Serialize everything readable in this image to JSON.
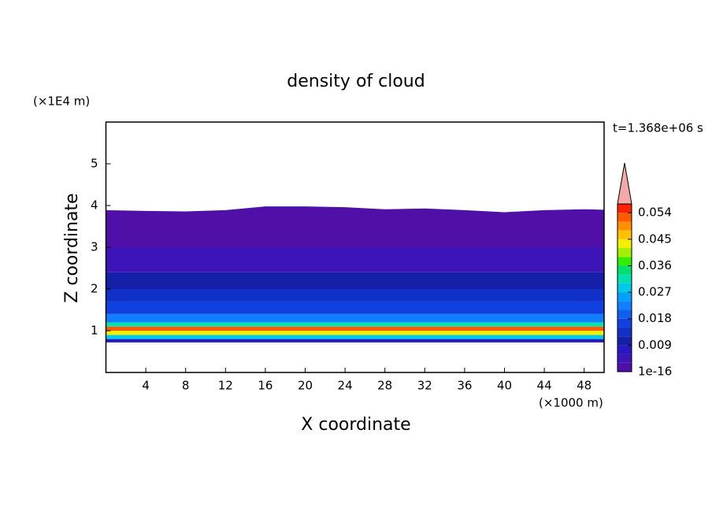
{
  "chart_data": {
    "type": "contour",
    "title": "density of cloud",
    "xlabel": "X coordinate",
    "ylabel": "Z coordinate",
    "x_unit": "(×1000 m)",
    "y_unit": "(×1E4 m)",
    "annotation": "t=1.368e+06 s",
    "xlim": [
      0,
      50
    ],
    "xticks": [
      4,
      8,
      12,
      16,
      20,
      24,
      28,
      32,
      36,
      40,
      44,
      48
    ],
    "ylim": [
      0,
      6
    ],
    "yticks": [
      1,
      2,
      3,
      4,
      5
    ],
    "layers": {
      "z": [
        0.72,
        0.8,
        0.9,
        1.0,
        1.1,
        1.2,
        1.4,
        1.7,
        2.0,
        2.4,
        3.0
      ],
      "values": [
        0.007,
        0.03,
        0.045,
        0.053,
        0.033,
        0.024,
        0.018,
        0.015,
        0.012,
        0.006
      ]
    },
    "cloud_top": {
      "x": [
        0,
        4,
        8,
        12,
        16,
        20,
        24,
        28,
        32,
        36,
        40,
        44,
        48,
        50
      ],
      "z": [
        3.88,
        3.86,
        3.85,
        3.88,
        3.97,
        3.97,
        3.95,
        3.9,
        3.92,
        3.88,
        3.83,
        3.88,
        3.9,
        3.89
      ],
      "value": 0.002
    },
    "colorbar": {
      "lim": [
        1e-16,
        0.057
      ],
      "ticks": [
        1e-16,
        0.009,
        0.018,
        0.027,
        0.036,
        0.045,
        0.054
      ],
      "colors": [
        "#5010a8",
        "#3c14b8",
        "#2818c0",
        "#1420a8",
        "#1030c8",
        "#1040e0",
        "#1060f0",
        "#1080ff",
        "#00a0ff",
        "#00c8e8",
        "#00e0b0",
        "#00e070",
        "#30f000",
        "#a0f000",
        "#f0f000",
        "#ffc000",
        "#ff9000",
        "#ff5a00",
        "#ff2000"
      ],
      "extend_color": "#f4a8a8"
    }
  }
}
